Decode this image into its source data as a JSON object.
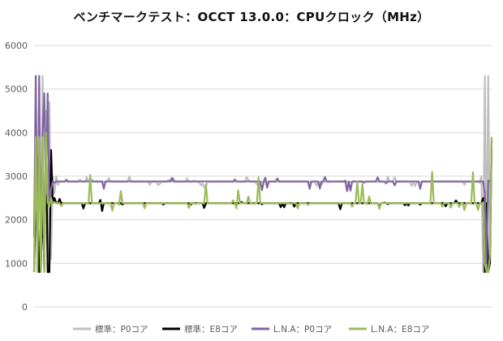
{
  "chart_data": {
    "type": "line",
    "title": "ベンチマークテスト：OCCT 13.0.0：CPUクロック（MHz）",
    "ylim": [
      0,
      6000
    ],
    "yticks": [
      "0",
      "1000",
      "2000",
      "3000",
      "4000",
      "5000",
      "6000"
    ],
    "ytick_values": [
      0,
      1000,
      2000,
      3000,
      4000,
      5000,
      6000
    ],
    "grid": "horizontal",
    "legend_position": "bottom",
    "x_count": 270,
    "series": [
      {
        "name": "標準：P0コア",
        "color": "#bfbfbf",
        "base": 2870,
        "noise": [
          2700,
          3000
        ],
        "segments": [
          [
            0,
            800
          ],
          [
            1,
            5300
          ],
          [
            2,
            800
          ],
          [
            3,
            1500
          ],
          [
            4,
            800
          ],
          [
            5,
            5300
          ],
          [
            6,
            800
          ],
          [
            7,
            4500
          ],
          [
            8,
            1100
          ],
          [
            9,
            4700
          ],
          [
            10,
            1100
          ],
          [
            11,
            3000
          ],
          [
            12,
            2600
          ],
          [
            13,
            3000
          ],
          [
            14,
            2800
          ],
          [
            262,
            2850
          ],
          [
            263,
            3000
          ],
          [
            264,
            800
          ],
          [
            265,
            5300
          ],
          [
            266,
            900
          ],
          [
            267,
            5300
          ],
          [
            268,
            1100
          ],
          [
            269,
            3900
          ]
        ]
      },
      {
        "name": "標準：E8コア",
        "color": "#000000",
        "base": 2380,
        "noise": [
          2200,
          2500
        ],
        "segments": [
          [
            0,
            800
          ],
          [
            3,
            800
          ],
          [
            4,
            900
          ],
          [
            6,
            900
          ],
          [
            7,
            3900
          ],
          [
            8,
            800
          ],
          [
            9,
            800
          ],
          [
            10,
            3600
          ],
          [
            11,
            2400
          ],
          [
            12,
            2500
          ],
          [
            14,
            2380
          ],
          [
            263,
            2380
          ],
          [
            264,
            2500
          ],
          [
            265,
            800
          ],
          [
            267,
            800
          ],
          [
            268,
            1000
          ],
          [
            269,
            3800
          ]
        ]
      },
      {
        "name": "L.N.A：P0コア",
        "color": "#8064a2",
        "base": 2880,
        "noise": [
          2650,
          3000
        ],
        "segments": [
          [
            0,
            1600
          ],
          [
            1,
            5300
          ],
          [
            2,
            1000
          ],
          [
            3,
            5300
          ],
          [
            4,
            1000
          ],
          [
            5,
            4000
          ],
          [
            6,
            4900
          ],
          [
            7,
            2600
          ],
          [
            8,
            4900
          ],
          [
            9,
            2300
          ],
          [
            10,
            2700
          ],
          [
            12,
            2850
          ],
          [
            14,
            2880
          ],
          [
            264,
            2880
          ],
          [
            265,
            2600
          ],
          [
            266,
            1000
          ],
          [
            267,
            2900
          ],
          [
            268,
            2880
          ],
          [
            269,
            2880
          ]
        ]
      },
      {
        "name": "L.N.A：E8コア",
        "color": "#9bbb59",
        "base": 2380,
        "noise": [
          2200,
          3100
        ],
        "segments": [
          [
            0,
            800
          ],
          [
            1,
            3900
          ],
          [
            2,
            800
          ],
          [
            3,
            3900
          ],
          [
            4,
            800
          ],
          [
            5,
            3900
          ],
          [
            6,
            800
          ],
          [
            7,
            4000
          ],
          [
            8,
            2400
          ],
          [
            9,
            2300
          ],
          [
            10,
            2500
          ],
          [
            12,
            2400
          ],
          [
            14,
            2380
          ],
          [
            263,
            2380
          ],
          [
            264,
            2400
          ],
          [
            265,
            1000
          ],
          [
            266,
            800
          ],
          [
            267,
            800
          ],
          [
            268,
            1200
          ],
          [
            269,
            3900
          ]
        ]
      }
    ]
  }
}
